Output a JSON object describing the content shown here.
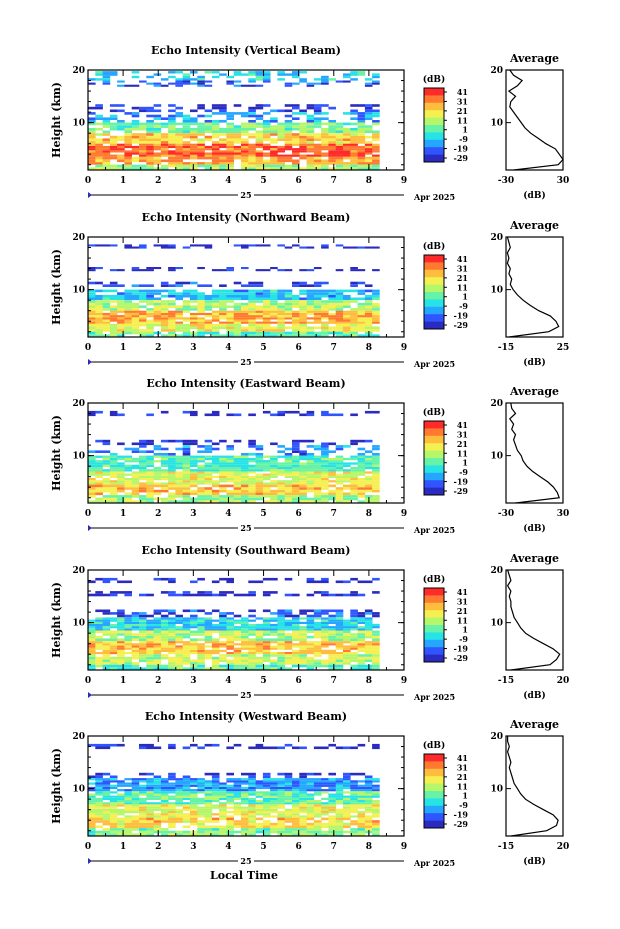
{
  "figure": {
    "xlabel": "Local Time",
    "date_day": "25",
    "date_month": "Apr 2025",
    "ylabel": "Height (km)",
    "colorbar_unit": "(dB)",
    "colorbar_ticks": [
      "41",
      "31",
      "21",
      "11",
      "1",
      "-9",
      "-19",
      "-29"
    ],
    "side_title": "Average",
    "side_xlabel": "(dB)",
    "colors": {
      "colormap": [
        "#2b2bc0",
        "#2f55ff",
        "#25a6ff",
        "#27e3e6",
        "#66f3a8",
        "#b6f66a",
        "#f4f051",
        "#ffbd3d",
        "#ff7a30",
        "#ff2a2a"
      ]
    }
  },
  "chart_data": [
    {
      "type": "heatmap",
      "title": "Echo Intensity (Vertical Beam)",
      "x_ticks": [
        "0",
        "1",
        "2",
        "3",
        "4",
        "5",
        "6",
        "7",
        "8",
        "9"
      ],
      "y_ticks": [
        "20",
        "10"
      ],
      "xlim": [
        0,
        9
      ],
      "ylim": [
        1,
        20
      ],
      "x_extent": [
        0,
        8.3
      ],
      "value_range": [
        -29,
        41
      ],
      "layers": [
        {
          "y0": 18.0,
          "y1": 19.8,
          "v": -6
        },
        {
          "y0": 16.8,
          "y1": 18.0,
          "v": -19
        },
        {
          "y0": 12.0,
          "y1": 13.5,
          "v": -22
        },
        {
          "y0": 10.0,
          "y1": 12.0,
          "v": -12
        },
        {
          "y0": 8.0,
          "y1": 10.0,
          "v": 5
        },
        {
          "y0": 6.0,
          "y1": 8.0,
          "v": 20
        },
        {
          "y0": 3.5,
          "y1": 6.0,
          "v": 33
        },
        {
          "y0": 2.0,
          "y1": 3.5,
          "v": 26
        },
        {
          "y0": 1.0,
          "y1": 2.0,
          "v": 8
        }
      ],
      "profile": {
        "xlim": [
          -30,
          30
        ],
        "x_ticks": [
          "-30",
          "30"
        ],
        "y_ticks": [
          "20",
          "10"
        ],
        "heights": [
          1,
          2,
          3,
          4,
          5,
          6,
          7,
          8,
          9,
          10,
          11,
          12,
          13,
          14,
          15,
          16,
          17,
          18,
          19,
          20
        ],
        "values": [
          -22,
          25,
          30,
          26,
          22,
          12,
          4,
          -4,
          -10,
          -14,
          -18,
          -22,
          -26,
          -25,
          -20,
          -27,
          -18,
          -13,
          -22,
          -26
        ]
      }
    },
    {
      "type": "heatmap",
      "title": "Echo Intensity (Northward Beam)",
      "x_ticks": [
        "0",
        "1",
        "2",
        "3",
        "4",
        "5",
        "6",
        "7",
        "8",
        "9"
      ],
      "y_ticks": [
        "20",
        "10"
      ],
      "xlim": [
        0,
        9
      ],
      "ylim": [
        1,
        20
      ],
      "x_extent": [
        0,
        8.3
      ],
      "value_range": [
        -29,
        41
      ],
      "layers": [
        {
          "y0": 17.8,
          "y1": 18.6,
          "v": -25
        },
        {
          "y0": 13.5,
          "y1": 14.3,
          "v": -25
        },
        {
          "y0": 10.5,
          "y1": 11.5,
          "v": -22
        },
        {
          "y0": 8.0,
          "y1": 10.0,
          "v": -8
        },
        {
          "y0": 6.0,
          "y1": 8.0,
          "v": 10
        },
        {
          "y0": 3.5,
          "y1": 6.0,
          "v": 24
        },
        {
          "y0": 2.0,
          "y1": 3.5,
          "v": 14
        },
        {
          "y0": 1.0,
          "y1": 2.0,
          "v": 2
        }
      ],
      "profile": {
        "xlim": [
          -15,
          25
        ],
        "x_ticks": [
          "-15",
          "25"
        ],
        "y_ticks": [
          "20",
          "10"
        ],
        "heights": [
          1,
          2,
          3,
          4,
          5,
          6,
          7,
          8,
          9,
          10,
          11,
          12,
          13,
          14,
          15,
          16,
          17,
          18,
          19,
          20
        ],
        "values": [
          -13,
          15,
          22,
          20,
          16,
          8,
          2,
          -3,
          -7,
          -10,
          -12,
          -11,
          -13,
          -12,
          -14,
          -13,
          -14,
          -12,
          -13,
          -14
        ]
      }
    },
    {
      "type": "heatmap",
      "title": "Echo Intensity (Eastward Beam)",
      "x_ticks": [
        "0",
        "1",
        "2",
        "3",
        "4",
        "5",
        "6",
        "7",
        "8",
        "9"
      ],
      "y_ticks": [
        "20",
        "10"
      ],
      "xlim": [
        0,
        9
      ],
      "ylim": [
        1,
        20
      ],
      "x_extent": [
        0,
        8.3
      ],
      "value_range": [
        -29,
        41
      ],
      "layers": [
        {
          "y0": 17.5,
          "y1": 18.5,
          "v": -25
        },
        {
          "y0": 12.0,
          "y1": 13.0,
          "v": -24
        },
        {
          "y0": 10.0,
          "y1": 12.0,
          "v": -15
        },
        {
          "y0": 7.0,
          "y1": 10.0,
          "v": 0
        },
        {
          "y0": 4.5,
          "y1": 7.0,
          "v": 14
        },
        {
          "y0": 2.5,
          "y1": 4.5,
          "v": 22
        },
        {
          "y0": 1.0,
          "y1": 2.5,
          "v": 8
        }
      ],
      "profile": {
        "xlim": [
          -30,
          30
        ],
        "x_ticks": [
          "-30",
          "30"
        ],
        "y_ticks": [
          "20",
          "10"
        ],
        "heights": [
          1,
          2,
          3,
          4,
          5,
          6,
          7,
          8,
          9,
          10,
          11,
          12,
          13,
          14,
          15,
          16,
          17,
          18,
          19,
          20
        ],
        "values": [
          -20,
          26,
          24,
          20,
          14,
          6,
          -2,
          -8,
          -12,
          -14,
          -18,
          -20,
          -22,
          -20,
          -24,
          -22,
          -26,
          -20,
          -24,
          -25
        ]
      }
    },
    {
      "type": "heatmap",
      "title": "Echo Intensity (Southward Beam)",
      "x_ticks": [
        "0",
        "1",
        "2",
        "3",
        "4",
        "5",
        "6",
        "7",
        "8",
        "9"
      ],
      "y_ticks": [
        "20",
        "10"
      ],
      "xlim": [
        0,
        9
      ],
      "ylim": [
        1,
        20
      ],
      "x_extent": [
        0,
        8.3
      ],
      "value_range": [
        -29,
        41
      ],
      "layers": [
        {
          "y0": 17.5,
          "y1": 18.5,
          "v": -25
        },
        {
          "y0": 15.0,
          "y1": 16.0,
          "v": -25
        },
        {
          "y0": 11.0,
          "y1": 12.5,
          "v": -20
        },
        {
          "y0": 8.5,
          "y1": 11.0,
          "v": -6
        },
        {
          "y0": 6.5,
          "y1": 8.5,
          "v": 10
        },
        {
          "y0": 4.0,
          "y1": 6.5,
          "v": 22
        },
        {
          "y0": 2.0,
          "y1": 4.0,
          "v": 12
        },
        {
          "y0": 1.0,
          "y1": 2.0,
          "v": 0
        }
      ],
      "profile": {
        "xlim": [
          -15,
          20
        ],
        "x_ticks": [
          "-15",
          "20"
        ],
        "y_ticks": [
          "20",
          "10"
        ],
        "heights": [
          1,
          2,
          3,
          4,
          5,
          6,
          7,
          8,
          9,
          10,
          11,
          12,
          13,
          14,
          15,
          16,
          17,
          18,
          19,
          20
        ],
        "values": [
          -12,
          12,
          16,
          18,
          14,
          8,
          2,
          -3,
          -6,
          -8,
          -10,
          -11,
          -12,
          -12,
          -13,
          -12,
          -14,
          -12,
          -13,
          -14
        ]
      }
    },
    {
      "type": "heatmap",
      "title": "Echo Intensity (Westward Beam)",
      "x_ticks": [
        "0",
        "1",
        "2",
        "3",
        "4",
        "5",
        "6",
        "7",
        "8",
        "9"
      ],
      "y_ticks": [
        "20",
        "10"
      ],
      "xlim": [
        0,
        9
      ],
      "ylim": [
        1,
        20
      ],
      "x_extent": [
        0,
        8.3
      ],
      "value_range": [
        -29,
        41
      ],
      "layers": [
        {
          "y0": 17.5,
          "y1": 18.5,
          "v": -25
        },
        {
          "y0": 12.0,
          "y1": 13.0,
          "v": -22
        },
        {
          "y0": 9.5,
          "y1": 12.0,
          "v": -12
        },
        {
          "y0": 7.0,
          "y1": 9.5,
          "v": 2
        },
        {
          "y0": 4.5,
          "y1": 7.0,
          "v": 14
        },
        {
          "y0": 2.5,
          "y1": 4.5,
          "v": 20
        },
        {
          "y0": 1.0,
          "y1": 2.5,
          "v": 6
        }
      ],
      "profile": {
        "xlim": [
          -15,
          20
        ],
        "x_ticks": [
          "-15",
          "20"
        ],
        "y_ticks": [
          "20",
          "10"
        ],
        "heights": [
          1,
          2,
          3,
          4,
          5,
          6,
          7,
          8,
          9,
          10,
          11,
          12,
          13,
          14,
          15,
          16,
          17,
          18,
          19,
          20
        ],
        "values": [
          -12,
          10,
          16,
          17,
          14,
          8,
          2,
          -3,
          -6,
          -8,
          -10,
          -11,
          -12,
          -13,
          -12,
          -13,
          -14,
          -13,
          -14,
          -14
        ]
      }
    }
  ]
}
